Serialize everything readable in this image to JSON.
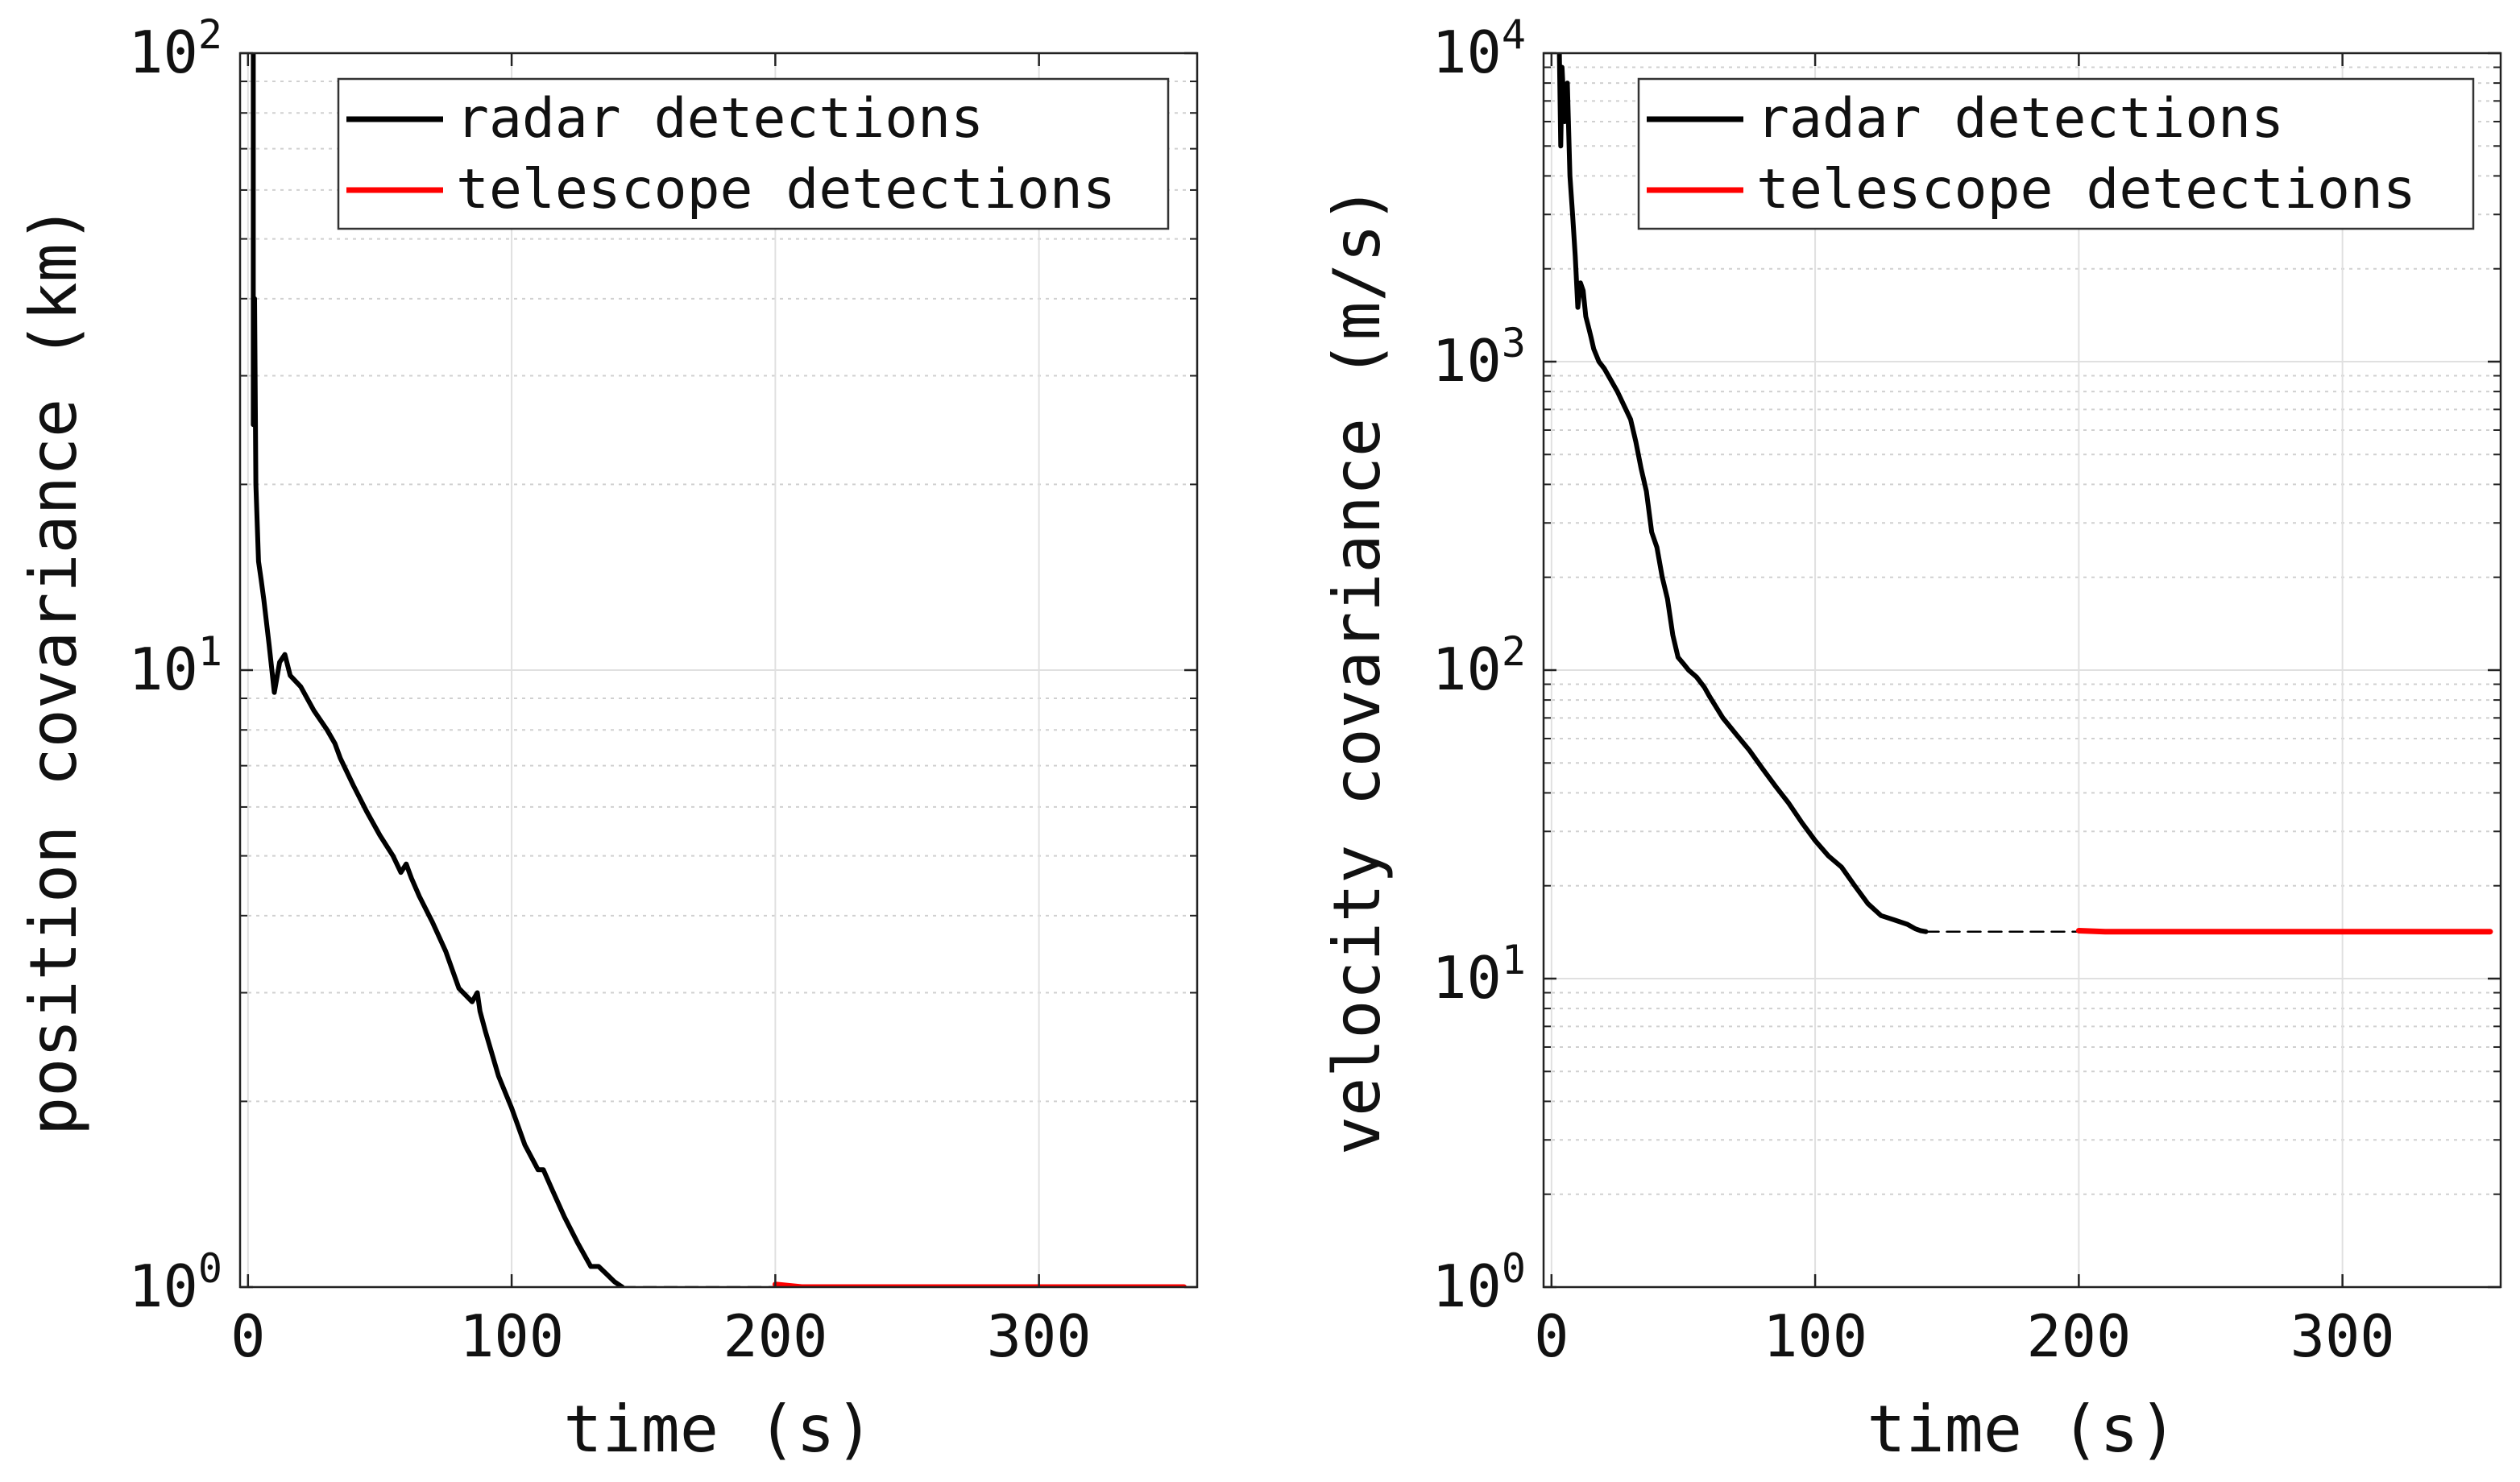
{
  "chart_data": [
    {
      "type": "line",
      "xlabel": "time (s)",
      "ylabel": "position covariance (km)",
      "xlim": [
        -3,
        360
      ],
      "ylim": [
        1,
        100
      ],
      "yscale": "log",
      "grid": true,
      "legend": {
        "placement": "top-right",
        "entries": [
          "radar detections",
          "telescope detections"
        ]
      },
      "x_ticks": [
        "0",
        "100",
        "200",
        "300"
      ],
      "x_tick_values": [
        0,
        100,
        200,
        300
      ],
      "y_ticks": [
        {
          "base": "10",
          "exp": "0",
          "value": 1
        },
        {
          "base": "10",
          "exp": "1",
          "value": 10
        },
        {
          "base": "10",
          "exp": "2",
          "value": 100
        }
      ],
      "series": [
        {
          "name": "radar detections",
          "color": "#000000",
          "x": [
            2,
            2,
            2.5,
            3,
            4,
            5,
            6,
            8,
            10,
            12,
            14,
            16,
            20,
            25,
            30,
            33,
            35,
            40,
            45,
            50,
            55,
            58,
            60,
            62,
            65,
            70,
            75,
            80,
            85,
            87,
            88,
            90,
            95,
            100,
            105,
            110,
            112,
            115,
            120,
            125,
            130,
            133,
            136,
            139,
            142
          ],
          "y": [
            100,
            25,
            40,
            20,
            15,
            14,
            13,
            11,
            9.2,
            10.3,
            10.6,
            9.8,
            9.4,
            8.6,
            8.0,
            7.6,
            7.2,
            6.5,
            5.9,
            5.4,
            5.0,
            4.7,
            4.85,
            4.6,
            4.3,
            3.9,
            3.5,
            3.05,
            2.9,
            3.0,
            2.8,
            2.6,
            2.2,
            1.95,
            1.7,
            1.55,
            1.55,
            1.45,
            1.3,
            1.18,
            1.08,
            1.08,
            1.05,
            1.02,
            1.0
          ]
        },
        {
          "name": "",
          "color": "#000000",
          "dashed": true,
          "x": [
            142,
            200
          ],
          "y": [
            1.0,
            1.0
          ]
        },
        {
          "name": "telescope detections",
          "color": "#ff0000",
          "x": [
            200,
            210,
            355
          ],
          "y": [
            1.01,
            1.0,
            1.0
          ]
        }
      ]
    },
    {
      "type": "line",
      "xlabel": "time (s)",
      "ylabel": "velocity covariance (m/s)",
      "xlim": [
        -3,
        360
      ],
      "ylim": [
        1,
        10000
      ],
      "yscale": "log",
      "grid": true,
      "legend": {
        "placement": "top-right",
        "entries": [
          "radar detections",
          "telescope detections"
        ]
      },
      "x_ticks": [
        "0",
        "100",
        "200",
        "300"
      ],
      "x_tick_values": [
        0,
        100,
        200,
        300
      ],
      "y_ticks": [
        {
          "base": "10",
          "exp": "0",
          "value": 1
        },
        {
          "base": "10",
          "exp": "1",
          "value": 10
        },
        {
          "base": "10",
          "exp": "2",
          "value": 100
        },
        {
          "base": "10",
          "exp": "3",
          "value": 1000
        },
        {
          "base": "10",
          "exp": "4",
          "value": 10000
        }
      ],
      "series": [
        {
          "name": "radar detections",
          "color": "#000000",
          "x": [
            3,
            3.5,
            4,
            5,
            6,
            7,
            8,
            9,
            10,
            11,
            12,
            13,
            14,
            15,
            16,
            18,
            20,
            25,
            30,
            32,
            34,
            36,
            38,
            40,
            42,
            44,
            46,
            48,
            50,
            52,
            55,
            58,
            60,
            65,
            70,
            75,
            80,
            85,
            90,
            95,
            100,
            105,
            110,
            115,
            120,
            125,
            130,
            135,
            138,
            140,
            142
          ],
          "y": [
            10000,
            5000,
            9000,
            6000,
            8000,
            4000,
            3000,
            2200,
            1500,
            1800,
            1700,
            1400,
            1300,
            1200,
            1100,
            1000,
            950,
            800,
            650,
            550,
            450,
            380,
            280,
            250,
            200,
            170,
            130,
            110,
            105,
            100,
            95,
            88,
            82,
            70,
            62,
            55,
            48,
            42,
            37,
            32,
            28,
            25,
            23,
            20,
            17.5,
            16,
            15.5,
            15,
            14.5,
            14.3,
            14.2
          ]
        },
        {
          "name": "",
          "color": "#000000",
          "dashed": true,
          "x": [
            142,
            200
          ],
          "y": [
            14.2,
            14.2
          ]
        },
        {
          "name": "telescope detections",
          "color": "#ff0000",
          "x": [
            200,
            210,
            356
          ],
          "y": [
            14.3,
            14.2,
            14.2
          ]
        }
      ]
    }
  ]
}
